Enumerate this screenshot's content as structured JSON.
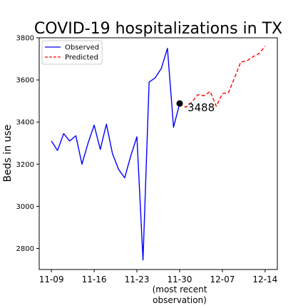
{
  "chart_data": {
    "type": "line",
    "title": "COVID-19 hospitalizations in TX",
    "ylabel": "Beds in use",
    "xlabel_lines": [
      "(most recent",
      "observation)"
    ],
    "ylim": [
      2700,
      3800
    ],
    "yticks": [
      2800,
      3000,
      3200,
      3400,
      3600,
      3800
    ],
    "xlim": [
      -2,
      37
    ],
    "xticks": [
      {
        "day": 0,
        "label": "11-09"
      },
      {
        "day": 7,
        "label": "11-16"
      },
      {
        "day": 14,
        "label": "11-23"
      },
      {
        "day": 21,
        "label": "11-30"
      },
      {
        "day": 28,
        "label": "12-07"
      },
      {
        "day": 35,
        "label": "12-14"
      }
    ],
    "legend_position": "upper-left",
    "series": [
      {
        "name": "Observed",
        "style": "solid",
        "color": "#0000ff",
        "x": [
          0,
          1,
          2,
          3,
          4,
          5,
          6,
          7,
          8,
          9,
          10,
          11,
          12,
          13,
          14,
          15,
          16,
          17,
          18,
          19,
          20,
          21
        ],
        "y": [
          3310,
          3265,
          3345,
          3310,
          3335,
          3200,
          3300,
          3385,
          3270,
          3390,
          3250,
          3175,
          3135,
          3240,
          3330,
          2745,
          3590,
          3610,
          3655,
          3750,
          3375,
          3488
        ]
      },
      {
        "name": "Predicted",
        "style": "dashed",
        "color": "#ff0000",
        "x": [
          21,
          22,
          23,
          24,
          25,
          26,
          27,
          28,
          29,
          30,
          31,
          32,
          33,
          34,
          35
        ],
        "y": [
          3488,
          3470,
          3495,
          3530,
          3525,
          3545,
          3475,
          3535,
          3540,
          3610,
          3685,
          3690,
          3710,
          3725,
          3760
        ]
      }
    ],
    "annotation": {
      "day": 21,
      "value": 3488,
      "label": "3488"
    }
  }
}
